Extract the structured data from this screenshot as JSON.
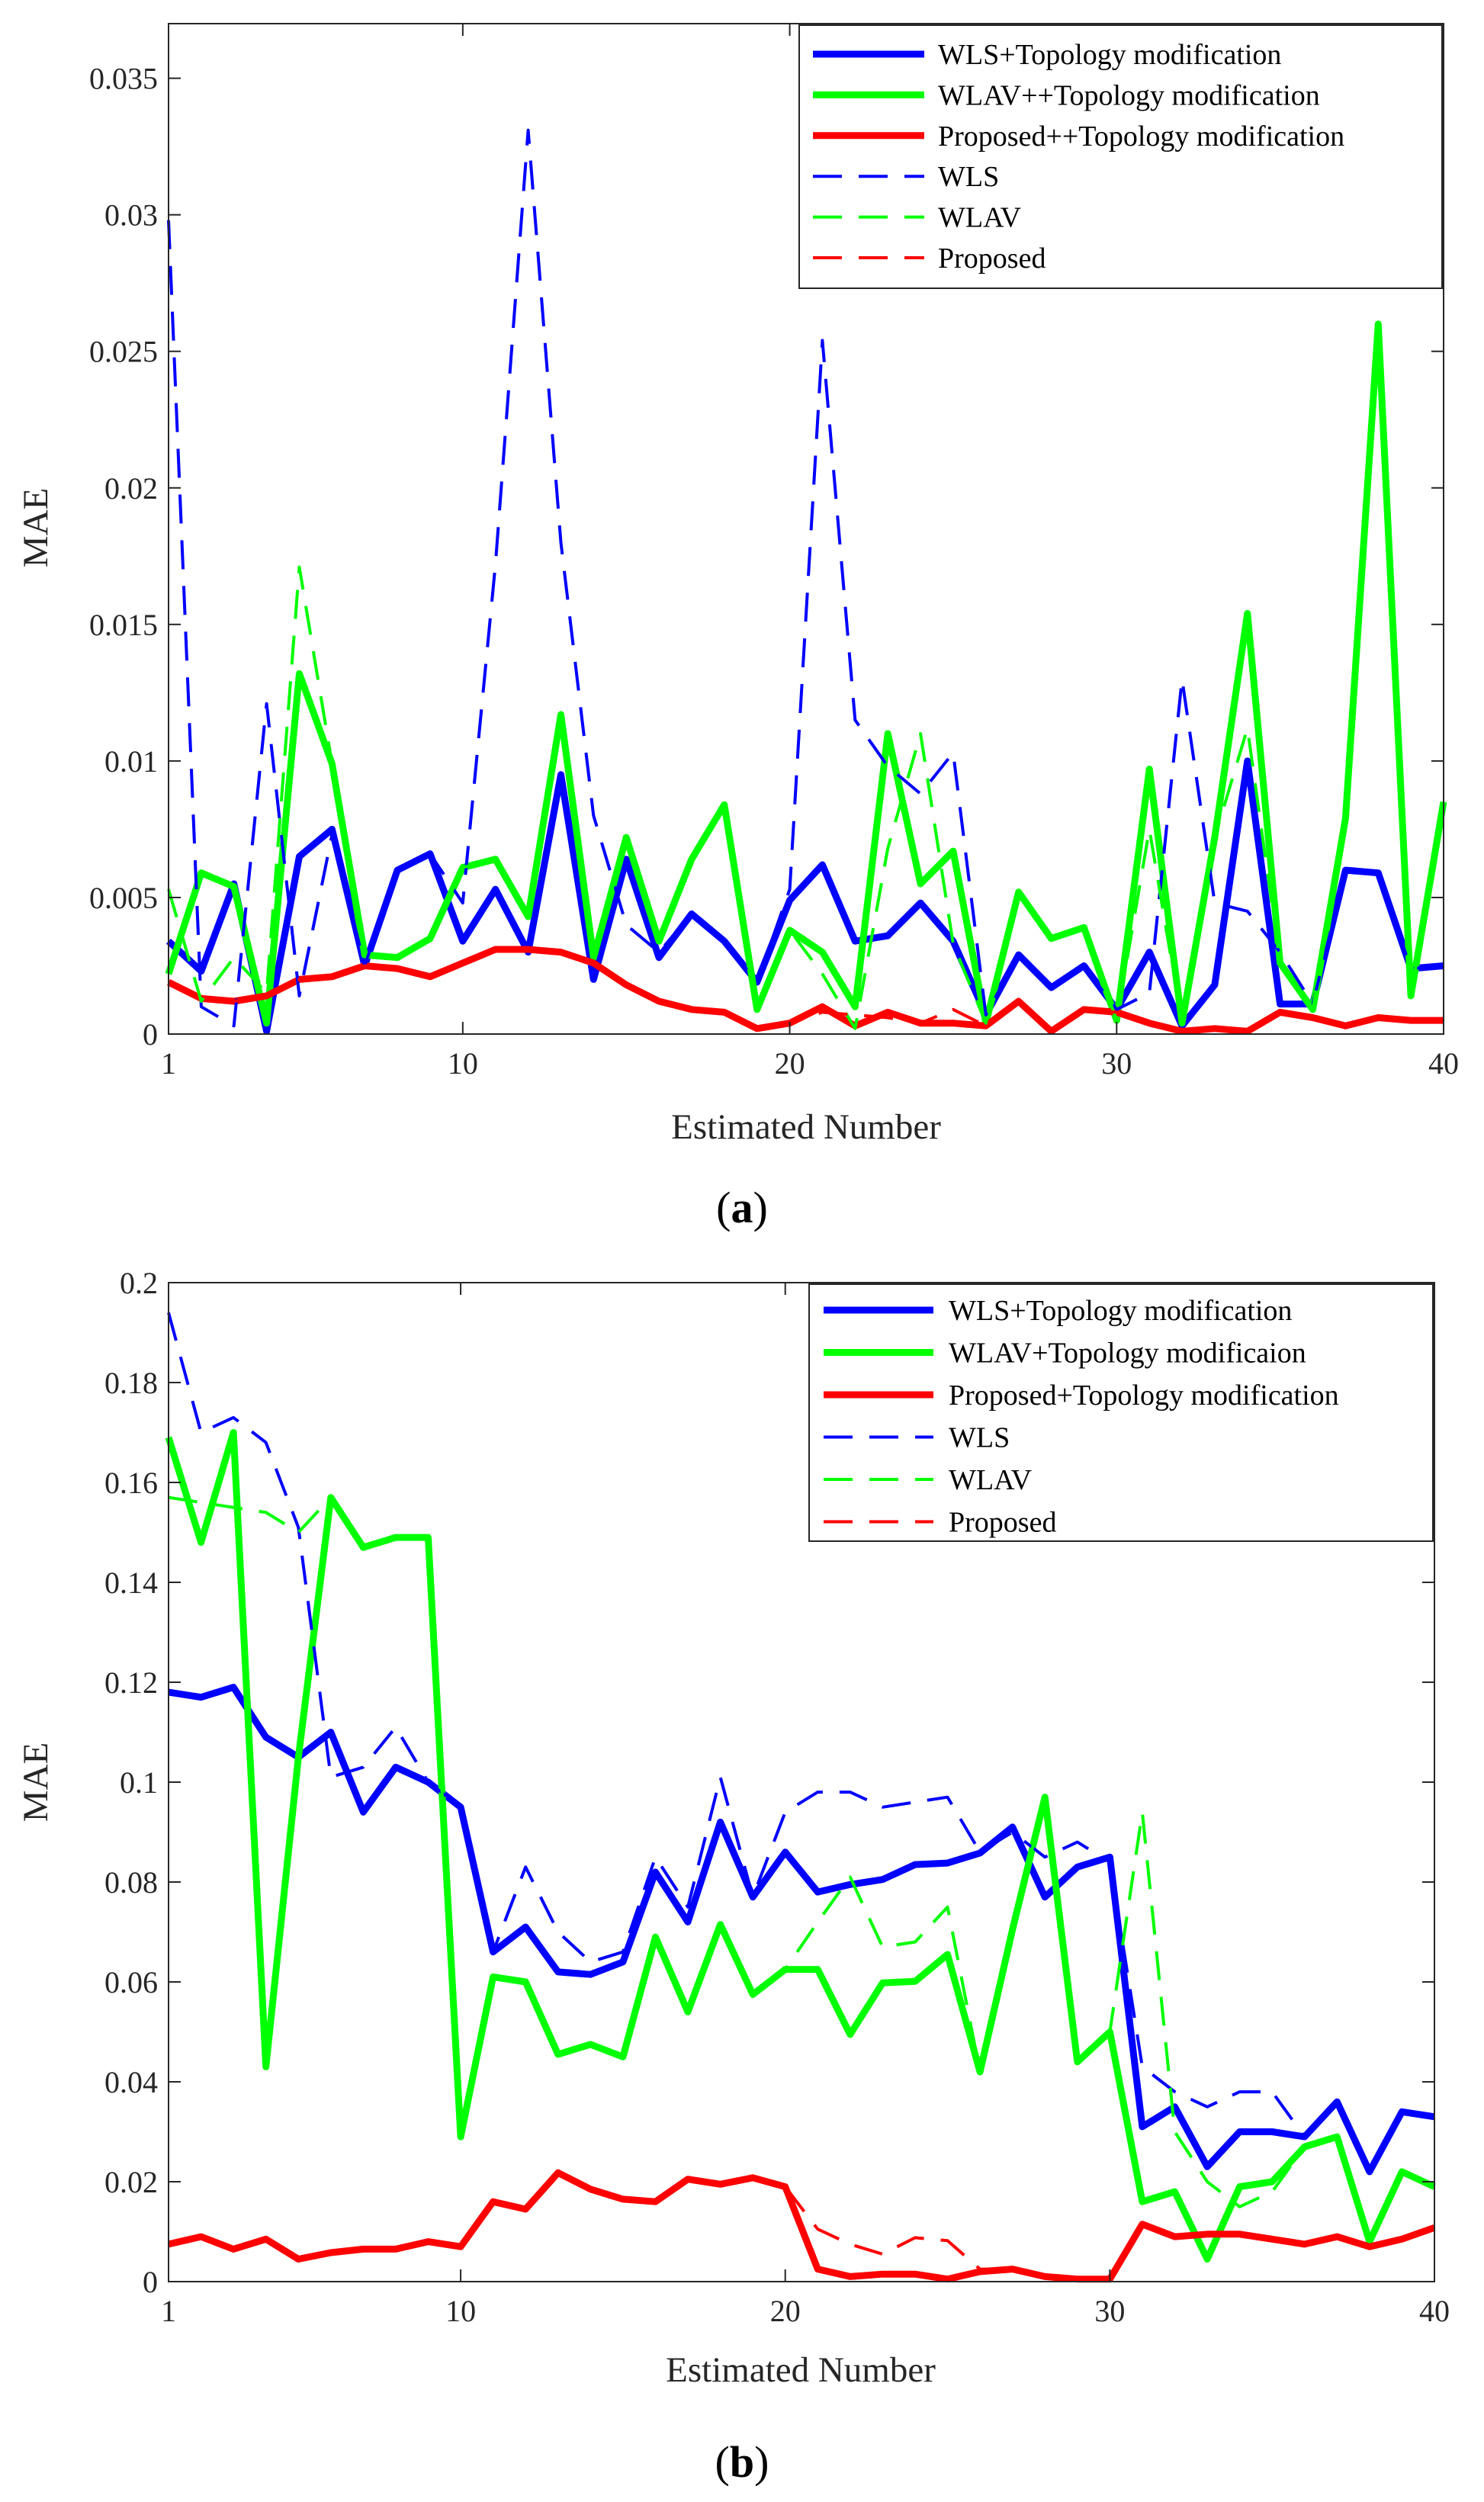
{
  "chart_data": [
    {
      "type": "line",
      "panel": "a",
      "caption_letter": "a",
      "xlabel": "Estimated Number",
      "ylabel": "MAE",
      "xlim": [
        1,
        40
      ],
      "ylim": [
        0,
        0.037
      ],
      "xticks": [
        1,
        10,
        20,
        30,
        40
      ],
      "yticks": [
        0,
        0.005,
        0.01,
        0.015,
        0.02,
        0.025,
        0.03,
        0.035
      ],
      "ytick_labels": [
        "0",
        "0.005",
        "0.01",
        "0.015",
        "0.02",
        "0.025",
        "0.03",
        "0.035"
      ],
      "legend_position": "top-right",
      "series": [
        {
          "name": "WLS+Topology modification",
          "color": "#0000ff",
          "style": "solid",
          "values": [
            0.0034,
            0.0023,
            0.0055,
            0.0001,
            0.0065,
            0.0075,
            0.0025,
            0.006,
            0.0066,
            0.0034,
            0.0053,
            0.003,
            0.0095,
            0.002,
            0.0064,
            0.0028,
            0.0044,
            0.0034,
            0.0019,
            0.0049,
            0.0062,
            0.0034,
            0.0036,
            0.0048,
            0.0034,
            0.0007,
            0.0029,
            0.0017,
            0.0025,
            0.0009,
            0.003,
            0.0003,
            0.0018,
            0.01,
            0.0011,
            0.0011,
            0.006,
            0.0059,
            0.0024,
            0.0025
          ]
        },
        {
          "name": "WLAV++Topology modification",
          "color": "#00ff00",
          "style": "solid",
          "values": [
            0.0022,
            0.0059,
            0.0054,
            0.0004,
            0.0132,
            0.0099,
            0.0029,
            0.0028,
            0.0035,
            0.0061,
            0.0064,
            0.0043,
            0.0117,
            0.0028,
            0.0072,
            0.0034,
            0.0064,
            0.0084,
            0.0009,
            0.0038,
            0.003,
            0.001,
            0.011,
            0.0055,
            0.0067,
            0.0004,
            0.0052,
            0.0035,
            0.0039,
            0.0005,
            0.0097,
            0.0004,
            0.0072,
            0.0154,
            0.0026,
            0.0009,
            0.0079,
            0.026,
            0.0014,
            0.0085
          ]
        },
        {
          "name": "Proposed++Topology modification",
          "color": "#ff0000",
          "style": "solid",
          "values": [
            0.0019,
            0.0013,
            0.0012,
            0.0014,
            0.002,
            0.0021,
            0.0025,
            0.0024,
            0.0021,
            0.0026,
            0.0031,
            0.0031,
            0.003,
            0.0026,
            0.0018,
            0.0012,
            0.0009,
            0.0008,
            0.0002,
            0.0004,
            0.001,
            0.0003,
            0.0008,
            0.0004,
            0.0004,
            0.0003,
            0.0012,
            0.0001,
            0.0009,
            0.0008,
            0.0004,
            0.0001,
            0.0002,
            0.0001,
            0.0008,
            0.0006,
            0.0003,
            0.0006,
            0.0005,
            0.0005
          ]
        },
        {
          "name": "WLS",
          "color": "#0000ff",
          "style": "dashed",
          "values": [
            0.0298,
            0.001,
            0.0003,
            0.0121,
            0.0014,
            0.0073,
            0.0025,
            0.006,
            0.0066,
            0.0048,
            0.0172,
            0.0331,
            0.018,
            0.008,
            0.004,
            0.003,
            0.0044,
            0.0034,
            0.0019,
            0.0053,
            0.0254,
            0.0115,
            0.0098,
            0.0088,
            0.0103,
            0.0007,
            0.0029,
            0.0017,
            0.0025,
            0.0009,
            0.0015,
            0.013,
            0.0048,
            0.0045,
            0.003,
            0.0011,
            0.006,
            0.0059,
            0.0024,
            0.0025
          ]
        },
        {
          "name": "WLAV",
          "color": "#00ff00",
          "style": "dashed",
          "values": [
            0.0053,
            0.0012,
            0.0028,
            0.0015,
            0.0171,
            0.0099,
            0.0029,
            0.0028,
            0.0035,
            0.0061,
            0.0064,
            0.0043,
            0.0117,
            0.0028,
            0.0072,
            0.0034,
            0.0064,
            0.0084,
            0.0009,
            0.0038,
            0.0022,
            0.0002,
            0.0068,
            0.011,
            0.0033,
            0.0004,
            0.0052,
            0.0035,
            0.0039,
            0.0005,
            0.0075,
            0.0004,
            0.0072,
            0.0112,
            0.0026,
            0.0009,
            0.0079,
            0.026,
            0.0014,
            0.0085
          ]
        },
        {
          "name": "Proposed",
          "color": "#ff0000",
          "style": "dashed",
          "values": [
            0.0019,
            0.0013,
            0.0012,
            0.0014,
            0.002,
            0.0021,
            0.0025,
            0.0024,
            0.0021,
            0.0026,
            0.0031,
            0.0031,
            0.003,
            0.0026,
            0.0018,
            0.0012,
            0.0009,
            0.0008,
            0.0002,
            0.0004,
            0.0008,
            0.0007,
            0.0006,
            0.0004,
            0.0009,
            0.0003,
            0.0012,
            0.0001,
            0.0009,
            0.0008,
            0.0004,
            0.0001,
            0.0002,
            0.0001,
            0.0008,
            0.0006,
            0.0003,
            0.0006,
            0.0005,
            0.0005
          ]
        }
      ]
    },
    {
      "type": "line",
      "panel": "b",
      "caption_letter": "b",
      "xlabel": "Estimated Number",
      "ylabel": "MAE",
      "xlim": [
        1,
        40
      ],
      "ylim": [
        0,
        0.2
      ],
      "xticks": [
        1,
        10,
        20,
        30,
        40
      ],
      "yticks": [
        0,
        0.02,
        0.04,
        0.06,
        0.08,
        0.1,
        0.12,
        0.14,
        0.16,
        0.18,
        0.2
      ],
      "ytick_labels": [
        "0",
        "0.02",
        "0.04",
        "0.06",
        "0.08",
        "0.1",
        "0.12",
        "0.14",
        "0.16",
        "0.18",
        "0.2"
      ],
      "legend_position": "top-right",
      "series": [
        {
          "name": "WLS+Topology modification",
          "color": "#0000ff",
          "style": "solid",
          "values": [
            0.118,
            0.117,
            0.119,
            0.109,
            0.105,
            0.11,
            0.094,
            0.103,
            0.1,
            0.095,
            0.066,
            0.071,
            0.062,
            0.0615,
            0.064,
            0.082,
            0.072,
            0.092,
            0.077,
            0.086,
            0.078,
            0.0795,
            0.0805,
            0.0835,
            0.0838,
            0.0858,
            0.091,
            0.077,
            0.083,
            0.085,
            0.031,
            0.035,
            0.023,
            0.03,
            0.03,
            0.029,
            0.036,
            0.022,
            0.034,
            0.033
          ]
        },
        {
          "name": "WLAV+Topology modificaion",
          "color": "#00ff00",
          "style": "solid",
          "values": [
            0.169,
            0.148,
            0.17,
            0.043,
            0.105,
            0.157,
            0.147,
            0.149,
            0.149,
            0.029,
            0.061,
            0.06,
            0.0455,
            0.0475,
            0.045,
            0.069,
            0.054,
            0.0715,
            0.0575,
            0.0625,
            0.0625,
            0.0495,
            0.0598,
            0.0601,
            0.0655,
            0.042,
            0.0705,
            0.097,
            0.044,
            0.05,
            0.016,
            0.018,
            0.0045,
            0.019,
            0.02,
            0.027,
            0.029,
            0.008,
            0.022,
            0.019
          ]
        },
        {
          "name": "Proposed+Topology modification",
          "color": "#ff0000",
          "style": "solid",
          "values": [
            0.0075,
            0.009,
            0.0065,
            0.0085,
            0.0045,
            0.0058,
            0.0065,
            0.0065,
            0.008,
            0.007,
            0.016,
            0.0145,
            0.0218,
            0.0185,
            0.0165,
            0.016,
            0.0205,
            0.0195,
            0.0208,
            0.019,
            0.0025,
            0.001,
            0.0015,
            0.0015,
            0.0005,
            0.002,
            0.0025,
            0.001,
            0.0005,
            0.0005,
            0.0115,
            0.009,
            0.0095,
            0.0095,
            0.0085,
            0.0075,
            0.009,
            0.007,
            0.0085,
            0.0108
          ]
        },
        {
          "name": "WLS",
          "color": "#0000ff",
          "style": "dashed",
          "values": [
            0.194,
            0.17,
            0.173,
            0.168,
            0.151,
            0.101,
            0.103,
            0.111,
            0.1,
            0.095,
            0.066,
            0.083,
            0.07,
            0.064,
            0.066,
            0.085,
            0.075,
            0.101,
            0.077,
            0.094,
            0.098,
            0.098,
            0.095,
            0.096,
            0.097,
            0.086,
            0.09,
            0.085,
            0.088,
            0.084,
            0.043,
            0.038,
            0.035,
            0.038,
            0.038,
            0.029,
            0.036,
            0.022,
            0.034,
            0.033
          ]
        },
        {
          "name": "WLAV",
          "color": "#00ff00",
          "style": "dashed",
          "values": [
            0.157,
            0.156,
            0.155,
            0.154,
            0.15,
            0.157,
            0.147,
            0.149,
            0.149,
            0.029,
            0.061,
            0.06,
            0.0455,
            0.0475,
            0.045,
            0.069,
            0.054,
            0.0715,
            0.0575,
            0.0625,
            0.072,
            0.081,
            0.067,
            0.068,
            0.075,
            0.042,
            0.0705,
            0.097,
            0.044,
            0.05,
            0.094,
            0.03,
            0.02,
            0.015,
            0.018,
            0.027,
            0.029,
            0.008,
            0.022,
            0.019
          ]
        },
        {
          "name": "Proposed",
          "color": "#ff0000",
          "style": "dashed",
          "values": [
            0.0075,
            0.009,
            0.0065,
            0.0085,
            0.0045,
            0.0058,
            0.0065,
            0.0065,
            0.008,
            0.007,
            0.016,
            0.0145,
            0.0218,
            0.0185,
            0.0165,
            0.016,
            0.0205,
            0.0195,
            0.0208,
            0.019,
            0.0105,
            0.0075,
            0.0055,
            0.0088,
            0.0082,
            0.0025,
            0.0025,
            0.001,
            0.0005,
            0.0005,
            0.0115,
            0.009,
            0.0095,
            0.0095,
            0.0085,
            0.0075,
            0.009,
            0.007,
            0.0085,
            0.0108
          ]
        }
      ]
    }
  ]
}
